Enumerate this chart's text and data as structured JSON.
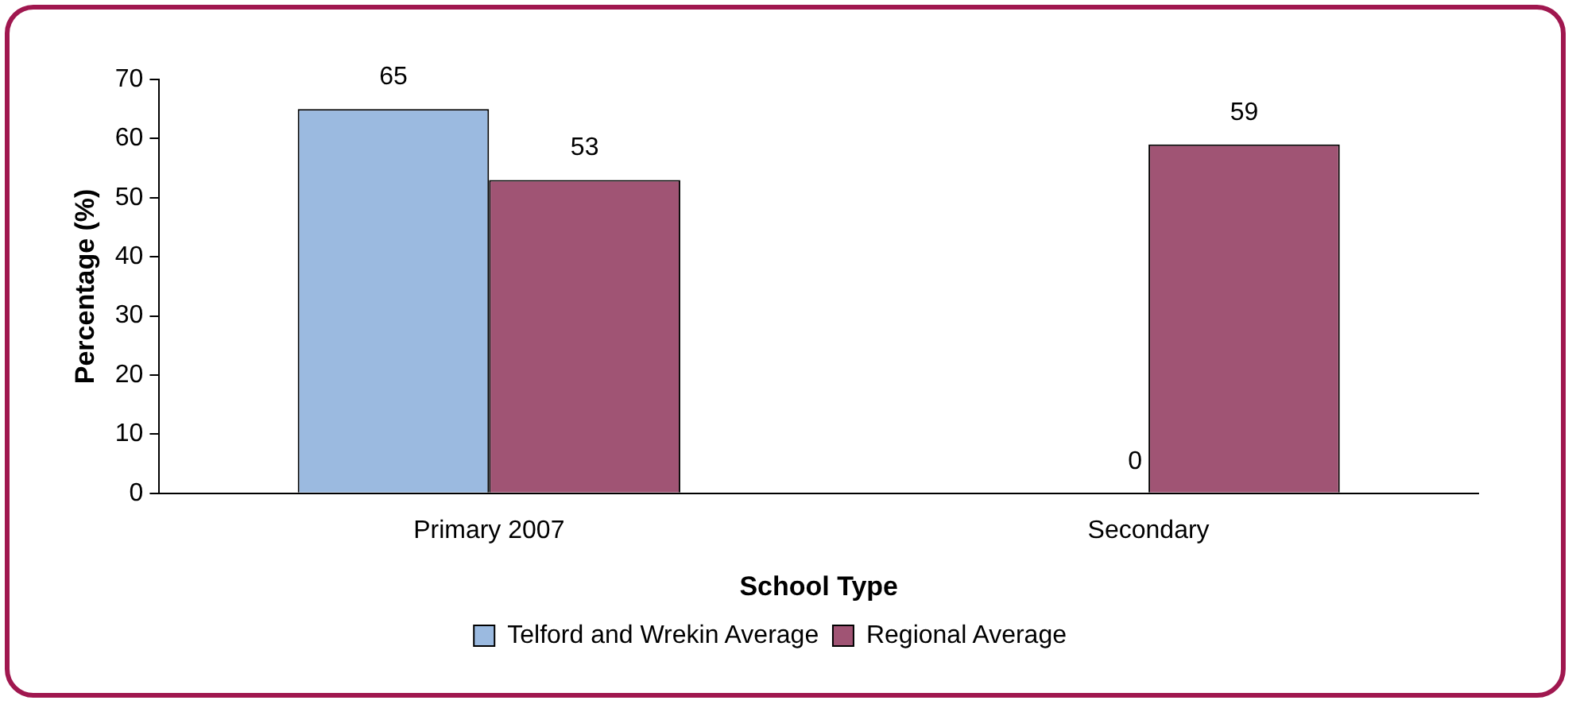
{
  "chart_data": {
    "type": "bar",
    "xlabel": "School Type",
    "ylabel": "Percentage (%)",
    "categories": [
      "Primary 2007",
      "Secondary"
    ],
    "series": [
      {
        "name": "Telford and Wrekin Average",
        "color": "#9bbae0",
        "values": [
          65,
          0
        ]
      },
      {
        "name": "Regional Average",
        "color": "#a05474",
        "values": [
          53,
          59
        ]
      }
    ],
    "ylim": [
      0,
      70
    ],
    "yticks": [
      0,
      10,
      20,
      30,
      40,
      50,
      60,
      70
    ],
    "grid": false,
    "legend": "bottom",
    "data_labels": true
  }
}
